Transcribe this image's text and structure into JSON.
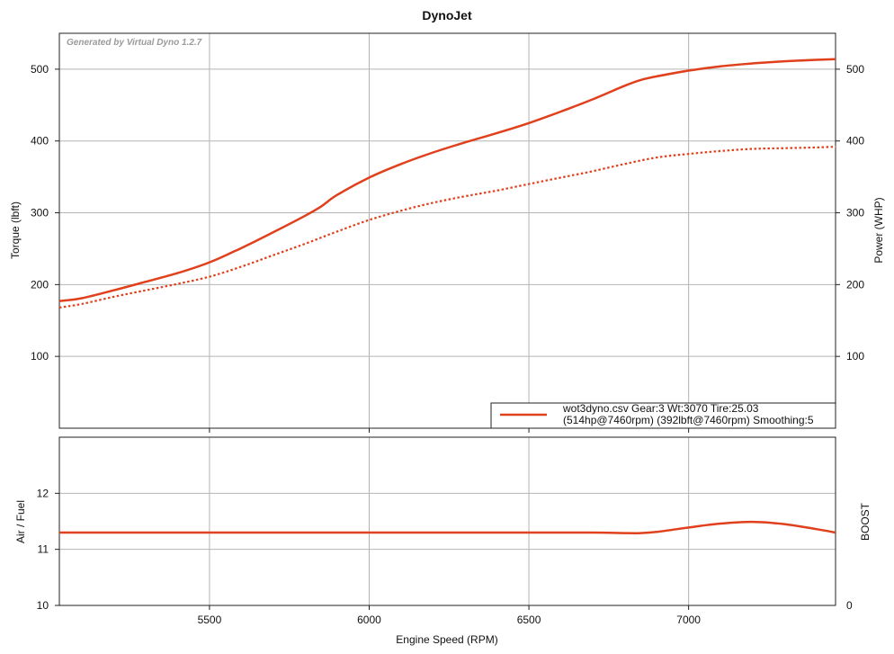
{
  "colors": {
    "series": "#e0401c",
    "grid": "#b4b4b4",
    "frame": "#222222"
  },
  "chart_data": [
    {
      "type": "line",
      "title": "DynoJet",
      "watermark": "Generated by Virtual Dyno 1.2.7",
      "xlabel": "",
      "ylabel": "Torque (lbft)",
      "y2label": "Power (WHP)",
      "xlim": [
        5030,
        7460
      ],
      "ylim": [
        0,
        550
      ],
      "xticks": [
        5500,
        6000,
        6500,
        7000
      ],
      "yticks": [
        100,
        200,
        300,
        400,
        500
      ],
      "y2ticks": [
        100,
        200,
        300,
        400,
        500
      ],
      "grid": true,
      "legend": {
        "position": "bottom-right",
        "line1": "wot3dyno.csv Gear:3 Wt:3070 Tire:25.03",
        "line2": "(514hp@7460rpm) (392lbft@7460rpm) Smoothing:5"
      },
      "series": [
        {
          "style": "solid",
          "axis": "right",
          "x": [
            5030,
            5100,
            5200,
            5300,
            5400,
            5500,
            5600,
            5700,
            5800,
            5850,
            5900,
            6000,
            6100,
            6200,
            6300,
            6400,
            6500,
            6600,
            6700,
            6800,
            6850,
            6900,
            7000,
            7100,
            7200,
            7300,
            7400,
            7460
          ],
          "y": [
            177,
            181,
            192,
            204,
            216,
            231,
            251,
            273,
            296,
            309,
            325,
            349,
            368,
            384,
            398,
            411,
            425,
            441,
            458,
            477,
            485,
            490,
            498,
            504,
            508,
            511,
            513,
            514
          ]
        },
        {
          "style": "dotted",
          "axis": "left",
          "x": [
            5030,
            5100,
            5200,
            5300,
            5400,
            5500,
            5600,
            5700,
            5800,
            5900,
            6000,
            6100,
            6200,
            6300,
            6400,
            6500,
            6600,
            6700,
            6800,
            6900,
            7000,
            7100,
            7200,
            7300,
            7400,
            7460
          ],
          "y": [
            168,
            173,
            183,
            192,
            201,
            211,
            225,
            241,
            257,
            274,
            290,
            303,
            314,
            323,
            331,
            340,
            349,
            358,
            368,
            377,
            382,
            386,
            389,
            390,
            391,
            392
          ]
        }
      ]
    },
    {
      "type": "line",
      "title": "",
      "xlabel": "Engine Speed (RPM)",
      "ylabel": "Air / Fuel",
      "y2label": "BOOST",
      "xlim": [
        5030,
        7460
      ],
      "ylim": [
        10,
        13
      ],
      "xticks": [
        5500,
        6000,
        6500,
        7000
      ],
      "yticks": [
        10,
        11,
        12
      ],
      "y2ticks": [
        0
      ],
      "grid": true,
      "series": [
        {
          "style": "solid",
          "x": [
            5030,
            5500,
            6000,
            6500,
            6700,
            6800,
            6850,
            6900,
            7000,
            7100,
            7200,
            7300,
            7400,
            7460
          ],
          "y": [
            11.3,
            11.3,
            11.3,
            11.3,
            11.3,
            11.29,
            11.29,
            11.31,
            11.39,
            11.46,
            11.49,
            11.45,
            11.36,
            11.3
          ]
        }
      ]
    }
  ]
}
